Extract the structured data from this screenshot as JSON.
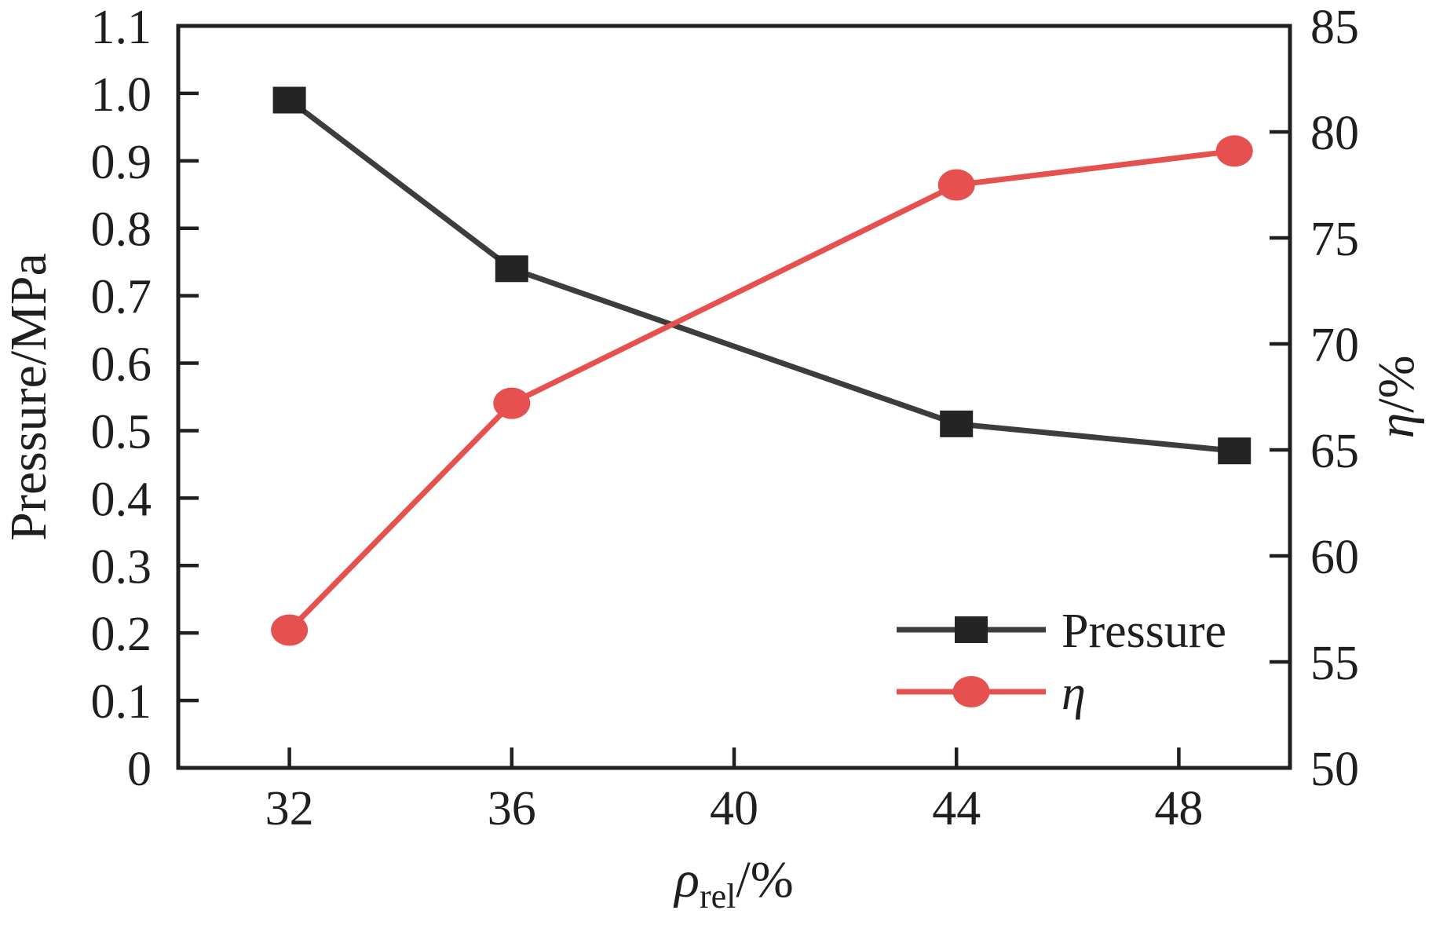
{
  "figure": {
    "background": "#ffffff",
    "frame_color": "#1f1f1f",
    "text_color": "#1f1f1f"
  },
  "chart_data": {
    "type": "line",
    "title": "",
    "xlabel": {
      "symbol": "ρ",
      "subscript": "rel",
      "suffix": "/%"
    },
    "xlim": [
      30,
      50
    ],
    "x_tick_values": [
      32,
      36,
      40,
      44,
      48
    ],
    "x_tick_labels": [
      "32",
      "36",
      "40",
      "44",
      "48"
    ],
    "left_axis": {
      "label": "Pressure/MPa",
      "lim": [
        0,
        1.1
      ],
      "tick_values": [
        0,
        0.1,
        0.2,
        0.3,
        0.4,
        0.5,
        0.6,
        0.7,
        0.8,
        0.9,
        1.0,
        1.1
      ],
      "tick_labels": [
        "0",
        "0.1",
        "0.2",
        "0.3",
        "0.4",
        "0.5",
        "0.6",
        "0.7",
        "0.8",
        "0.9",
        "1.0",
        "1.1"
      ]
    },
    "right_axis": {
      "label": {
        "symbol": "η",
        "suffix": "/%"
      },
      "lim": [
        50,
        85
      ],
      "tick_values": [
        50,
        55,
        60,
        65,
        70,
        75,
        80,
        85
      ],
      "tick_labels": [
        "50",
        "55",
        "60",
        "65",
        "70",
        "75",
        "80",
        "85"
      ]
    },
    "grid": false,
    "legend": {
      "position": "lower-right",
      "entries": [
        "Pressure",
        "η"
      ]
    },
    "series": [
      {
        "key": "pressure",
        "name": "Pressure",
        "italic": false,
        "axis": "left",
        "marker": "square",
        "line_color": "#3d3d3d",
        "marker_color": "#242424",
        "x": [
          32,
          36,
          44,
          49
        ],
        "y": [
          0.99,
          0.74,
          0.51,
          0.47
        ]
      },
      {
        "key": "eta",
        "name": "η",
        "italic": true,
        "axis": "right",
        "marker": "circle",
        "line_color": "#e6504e",
        "marker_color": "#e6504e",
        "x": [
          32,
          36,
          44,
          49
        ],
        "y": [
          56.5,
          67.2,
          77.5,
          79.1
        ]
      }
    ]
  }
}
